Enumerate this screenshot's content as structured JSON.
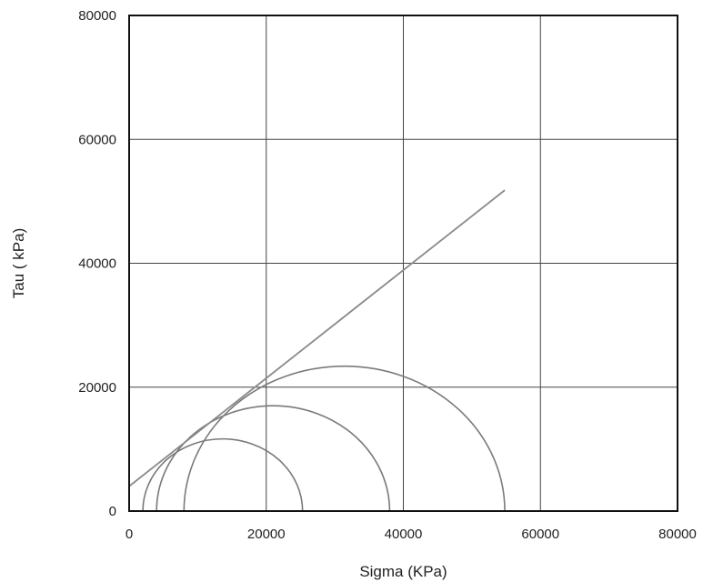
{
  "chart_data": {
    "type": "scatter",
    "title": "",
    "xlabel": "Sigma (KPa)",
    "ylabel": "Tau ( kPa)",
    "xlim": [
      0,
      80000
    ],
    "ylim": [
      0,
      80000
    ],
    "x_ticks": [
      0,
      20000,
      40000,
      60000,
      80000
    ],
    "y_ticks": [
      0,
      20000,
      40000,
      60000,
      80000
    ],
    "x_tick_labels": [
      "0",
      "20000",
      "40000",
      "60000",
      "80000"
    ],
    "y_tick_labels": [
      "0",
      "20000",
      "40000",
      "60000",
      "80000"
    ],
    "grid": true,
    "mohr_circles": [
      {
        "sigma3": 2000,
        "sigma1": 25300
      },
      {
        "sigma3": 4000,
        "sigma1": 38000
      },
      {
        "sigma3": 8000,
        "sigma1": 54800
      }
    ],
    "failure_envelope": {
      "x": [
        0,
        54800
      ],
      "y": [
        4000,
        51800
      ]
    },
    "colors": {
      "circles": "#7a7a7a",
      "envelope": "#8a8a8a",
      "grid": "#444444",
      "frame": "#111111"
    }
  }
}
